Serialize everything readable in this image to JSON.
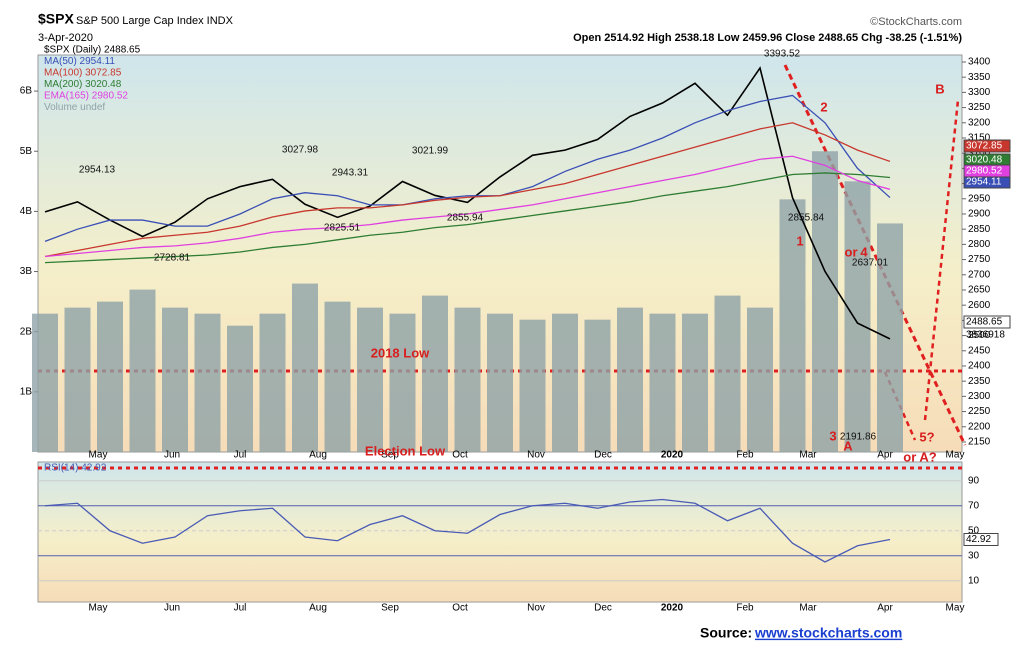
{
  "header": {
    "symbol": "$SPX",
    "name": "S&P 500 Large Cap Index INDX",
    "date": "3-Apr-2020",
    "ohlc": "Open 2514.92  High 2538.18  Low 2459.96  Close 2488.65  Chg -38.25 (-1.51%)",
    "credit": "©StockCharts.com"
  },
  "chart_data": {
    "type": "line",
    "x_labels": [
      "May",
      "Jun",
      "Jul",
      "Aug",
      "Sep",
      "Oct",
      "Nov",
      "Dec",
      "2020",
      "Feb",
      "Mar",
      "Apr",
      "May"
    ],
    "ylim": [
      2117,
      3423
    ],
    "yticks": [
      2150,
      2200,
      2250,
      2300,
      2350,
      2400,
      2450,
      2500,
      2550,
      2600,
      2650,
      2700,
      2750,
      2800,
      2850,
      2900,
      2950,
      3000,
      3050,
      3100,
      3150,
      3200,
      3250,
      3300,
      3350,
      3400
    ],
    "series": [
      {
        "name": "$SPX (Daily) 2488.65",
        "color": "#000000",
        "last_label": "2488.65",
        "values": [
          2907,
          2940,
          2880,
          2826,
          2873,
          2950,
          2990,
          3014,
          2932,
          2889,
          2926,
          3007,
          2961,
          2938,
          3022,
          3093,
          3110,
          3145,
          3221,
          3265,
          3330,
          3225,
          3380,
          2954,
          2711,
          2541,
          2489
        ]
      },
      {
        "name": "MA(50) 2954.11",
        "color": "#3a4fb5",
        "last_label": "2954.11",
        "values": [
          2810,
          2850,
          2880,
          2880,
          2860,
          2860,
          2900,
          2950,
          2970,
          2960,
          2930,
          2930,
          2950,
          2960,
          2960,
          2990,
          3040,
          3080,
          3110,
          3150,
          3200,
          3240,
          3270,
          3290,
          3200,
          3050,
          2954
        ]
      },
      {
        "name": "MA(100) 3072.85",
        "color": "#c8372d",
        "last_label": "3072.85",
        "values": [
          2760,
          2780,
          2800,
          2820,
          2830,
          2840,
          2860,
          2890,
          2910,
          2920,
          2920,
          2930,
          2945,
          2955,
          2960,
          2980,
          3000,
          3030,
          3060,
          3090,
          3120,
          3150,
          3180,
          3200,
          3160,
          3110,
          3073
        ]
      },
      {
        "name": "MA(200) 3020.48",
        "color": "#2e7d32",
        "last_label": "3020.48",
        "values": [
          2740,
          2745,
          2750,
          2755,
          2760,
          2765,
          2775,
          2790,
          2800,
          2815,
          2830,
          2840,
          2855,
          2865,
          2880,
          2895,
          2910,
          2925,
          2940,
          2960,
          2975,
          2990,
          3010,
          3030,
          3035,
          3030,
          3020
        ]
      },
      {
        "name": "EMA(165) 2980.52",
        "color": "#e040e0",
        "last_label": "2980.52",
        "values": [
          2760,
          2770,
          2780,
          2790,
          2795,
          2805,
          2820,
          2840,
          2850,
          2855,
          2865,
          2880,
          2890,
          2900,
          2915,
          2930,
          2950,
          2970,
          2990,
          3010,
          3030,
          3055,
          3080,
          3090,
          3060,
          3010,
          2981
        ]
      }
    ],
    "volume": {
      "name": "Volume undef",
      "color": "#8fa3a8",
      "last_label": "3836918",
      "ylim": [
        0,
        6.6
      ],
      "yticks": [
        {
          "value": 1,
          "label": "1B"
        },
        {
          "value": 2,
          "label": "2B"
        },
        {
          "value": 3,
          "label": "3B"
        },
        {
          "value": 4,
          "label": "4B"
        },
        {
          "value": 5,
          "label": "5B"
        },
        {
          "value": 6,
          "label": "6B"
        }
      ],
      "values": [
        2.3,
        2.4,
        2.5,
        2.7,
        2.4,
        2.3,
        2.1,
        2.3,
        2.8,
        2.5,
        2.4,
        2.3,
        2.6,
        2.4,
        2.3,
        2.2,
        2.3,
        2.2,
        2.4,
        2.3,
        2.3,
        2.6,
        2.4,
        4.2,
        5.0,
        4.5,
        3.8
      ]
    },
    "rsi": {
      "name": "RSI(14) 42.92",
      "color": "#4a5bb5",
      "last_label": "42.92",
      "ylim": [
        -7,
        105
      ],
      "yticks": [
        10,
        30,
        50,
        70,
        90
      ],
      "values": [
        70,
        72,
        50,
        40,
        45,
        62,
        66,
        68,
        45,
        42,
        55,
        62,
        50,
        48,
        63,
        70,
        72,
        68,
        73,
        75,
        72,
        58,
        68,
        40,
        25,
        38,
        43
      ]
    },
    "annotations": [
      "2954.13",
      "3027.98",
      "2943.31",
      "3021.99",
      "2825.51",
      "2728.81",
      "2855.94",
      "3393.52",
      "2855.84",
      "2637.01",
      "2191.86",
      "1",
      "2",
      "3",
      "or",
      "4",
      "A",
      "B",
      "5?",
      "or A?",
      "2018 Low",
      "Election Low"
    ]
  },
  "footer": {
    "label": "Source:",
    "link": "www.stockcharts.com"
  }
}
